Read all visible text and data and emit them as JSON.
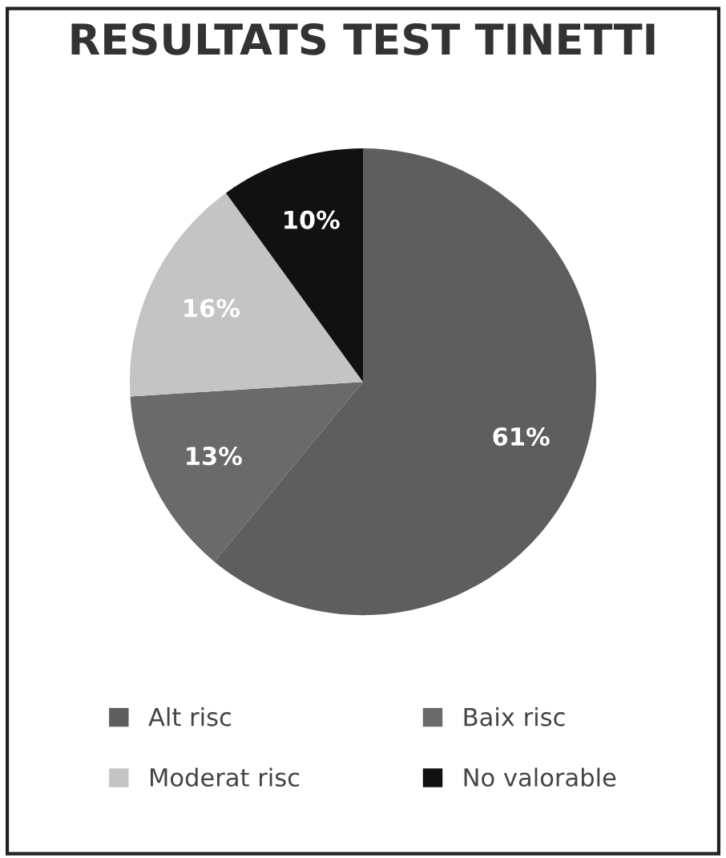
{
  "chart_data": {
    "type": "pie",
    "title": "RESULTATS TEST TINETTI",
    "categories": [
      "Alt risc",
      "Baix risc",
      "Moderat risc",
      "No valorable"
    ],
    "values": [
      61,
      13,
      16,
      10
    ],
    "colors": [
      "#5e5e5e",
      "#6a6a6a",
      "#c4c4c4",
      "#111111"
    ],
    "value_labels": [
      "61%",
      "13%",
      "16%",
      "10%"
    ],
    "legend": "bottom"
  }
}
